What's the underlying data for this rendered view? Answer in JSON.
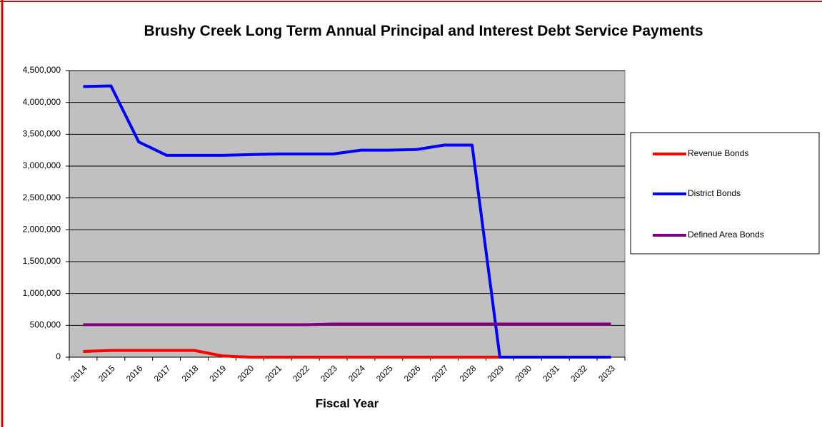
{
  "chart_data": {
    "type": "line",
    "title": "Brushy Creek Long Term Annual Principal and Interest Debt Service Payments",
    "x_label": "Fiscal Year",
    "categories": [
      "2014",
      "2015",
      "2016",
      "2017",
      "2018",
      "2019",
      "2020",
      "2021",
      "2022",
      "2023",
      "2024",
      "2025",
      "2026",
      "2027",
      "2028",
      "2029",
      "2030",
      "2031",
      "2032",
      "2033"
    ],
    "series": [
      {
        "name": "Revenue Bonds",
        "color": "#ff0000",
        "values": [
          90000,
          105000,
          105000,
          105000,
          105000,
          20000,
          0,
          0,
          0,
          0,
          0,
          0,
          0,
          0,
          0,
          0,
          0,
          0,
          0,
          0
        ]
      },
      {
        "name": "District Bonds",
        "color": "#0000ff",
        "values": [
          4250000,
          4260000,
          3380000,
          3170000,
          3170000,
          3170000,
          3180000,
          3190000,
          3190000,
          3190000,
          3250000,
          3250000,
          3260000,
          3330000,
          3330000,
          0,
          0,
          0,
          0,
          0
        ]
      },
      {
        "name": "Defined Area Bonds",
        "color": "#800080",
        "values": [
          510000,
          510000,
          510000,
          510000,
          510000,
          510000,
          510000,
          510000,
          510000,
          520000,
          520000,
          520000,
          520000,
          520000,
          520000,
          520000,
          520000,
          520000,
          520000,
          520000
        ]
      }
    ],
    "ylim": [
      0,
      4500000
    ],
    "yticks": [
      0,
      {
        "value": 500000,
        "label": "500,000"
      },
      {
        "value": 1000000,
        "label": "1,000,000"
      },
      {
        "value": 1500000,
        "label": "1,500,000"
      },
      {
        "value": 2000000,
        "label": "2,000,000"
      },
      {
        "value": 2500000,
        "label": "2,500,000"
      },
      {
        "value": 3000000,
        "label": "3,000,000"
      },
      {
        "value": 3500000,
        "label": "3,500,000"
      },
      {
        "value": 4000000,
        "label": "4,000,000"
      },
      {
        "value": 4500000,
        "label": "4,500,000"
      }
    ],
    "grid": true,
    "legend": "right"
  }
}
